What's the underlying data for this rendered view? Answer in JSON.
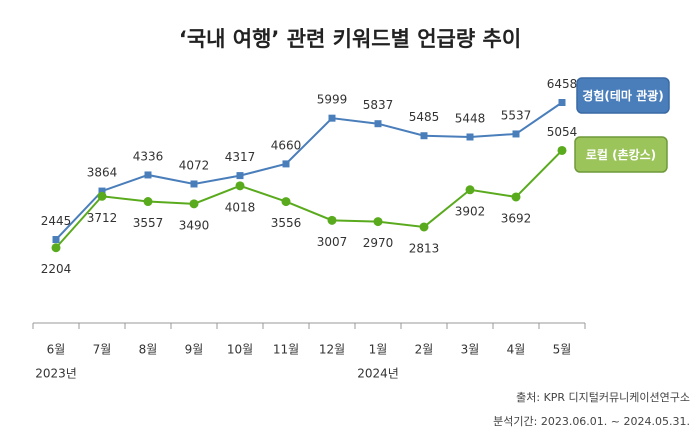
{
  "chart_data": {
    "type": "line",
    "title": "‘국내 여행’ 관련 키워드별 언급량 추이",
    "categories": [
      "6월",
      "7월",
      "8월",
      "9월",
      "10월",
      "11월",
      "12월",
      "1월",
      "2월",
      "3월",
      "4월",
      "5월"
    ],
    "year_labels": [
      "2023년",
      null,
      null,
      null,
      null,
      null,
      null,
      "2024년",
      null,
      null,
      null,
      null
    ],
    "ylim": [
      0,
      7000
    ],
    "series": [
      {
        "name": "경험(테마 관광)",
        "color": "#4a7ebb",
        "marker": "square",
        "values": [
          2445,
          3864,
          4336,
          4072,
          4317,
          4660,
          5999,
          5837,
          5485,
          5448,
          5537,
          6458
        ]
      },
      {
        "name": "로컬 (촌캉스)",
        "color": "#5aaa1e",
        "marker": "circle",
        "values": [
          2204,
          3712,
          3557,
          3490,
          4018,
          3556,
          3007,
          2970,
          2813,
          3902,
          3692,
          5054
        ]
      }
    ],
    "notes": [
      "출처: KPR 디지털커뮤니케이션연구소",
      "분석기간: 2023.06.01. ~ 2024.05.31."
    ]
  }
}
